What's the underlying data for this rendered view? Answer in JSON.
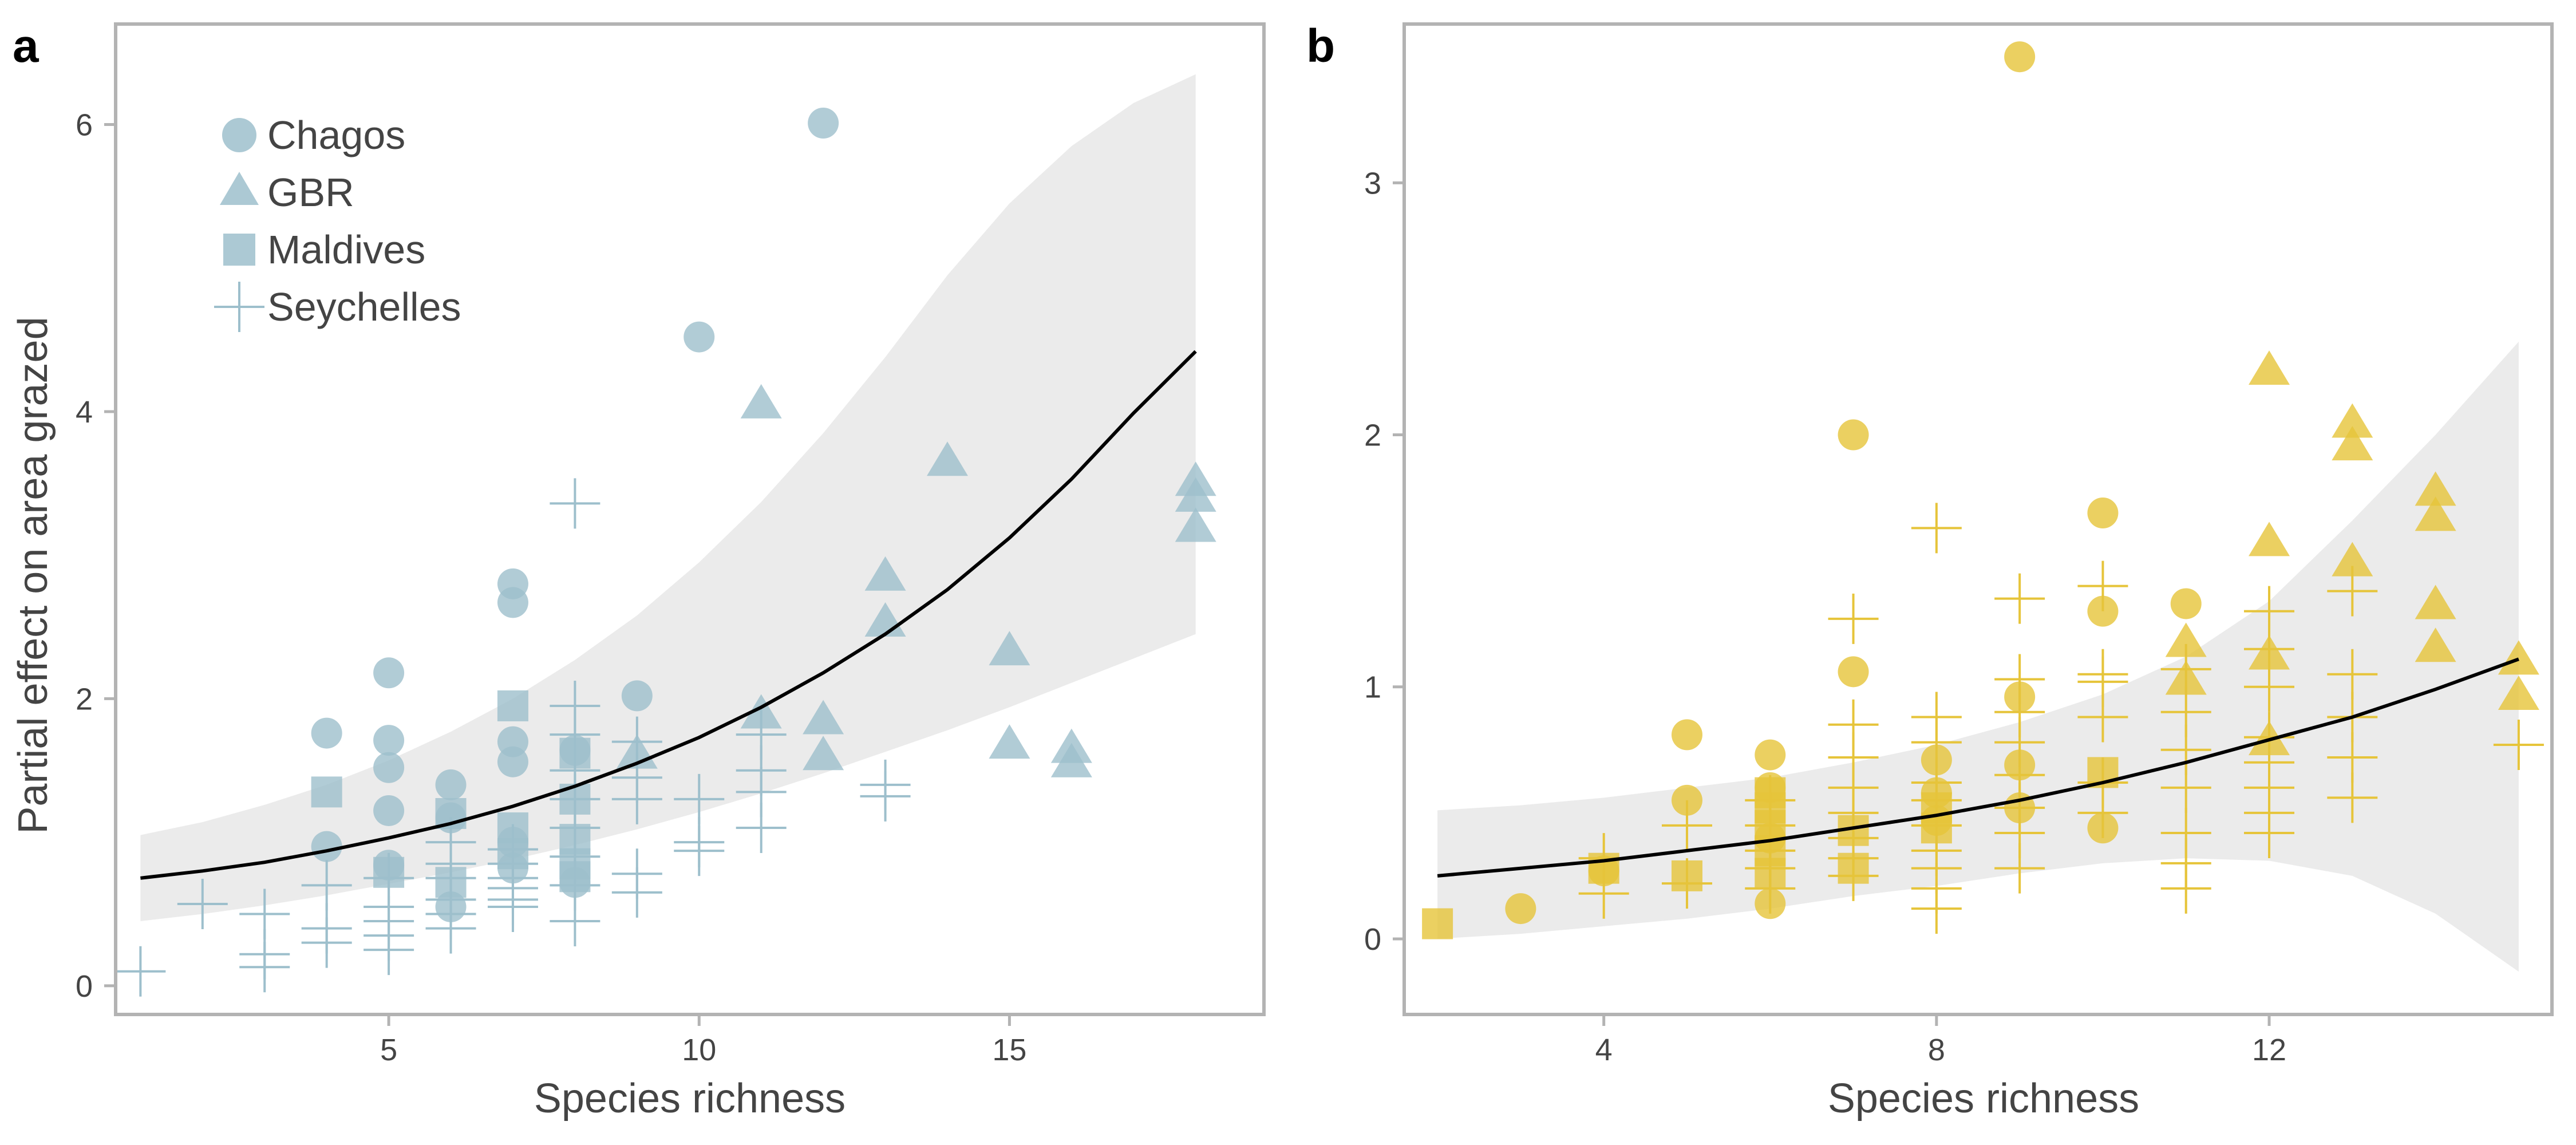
{
  "colors": {
    "panel_a": "#9dbfcc",
    "panel_b": "#e6c43a",
    "ribbon": "#ebebeb",
    "frame": "#b3b3b3",
    "fit_line": "#000000",
    "text": "#444444"
  },
  "legend": {
    "items": [
      {
        "label": "Chagos",
        "shape": "circle"
      },
      {
        "label": "GBR",
        "shape": "triangle"
      },
      {
        "label": "Maldives",
        "shape": "square"
      },
      {
        "label": "Seychelles",
        "shape": "plus"
      }
    ]
  },
  "chart_data": [
    {
      "panel": "a",
      "type": "scatter",
      "xlabel": "Species richness",
      "ylabel": "Partial effect on area grazed",
      "xlim": [
        0.6,
        19.1
      ],
      "ylim": [
        -0.2,
        6.7
      ],
      "xticks": [
        5,
        10,
        15
      ],
      "yticks": [
        0,
        2,
        4,
        6
      ],
      "grid": false,
      "legend_position": "top-left",
      "fit": {
        "x": [
          1,
          2,
          3,
          4,
          5,
          6,
          7,
          8,
          9,
          10,
          11,
          12,
          13,
          14,
          15,
          16,
          17,
          18
        ],
        "y": [
          0.75,
          0.8,
          0.86,
          0.94,
          1.03,
          1.13,
          1.25,
          1.39,
          1.55,
          1.73,
          1.94,
          2.18,
          2.45,
          2.76,
          3.12,
          3.53,
          3.99,
          4.42
        ],
        "lower": [
          0.45,
          0.5,
          0.56,
          0.63,
          0.71,
          0.79,
          0.88,
          0.98,
          1.09,
          1.21,
          1.34,
          1.48,
          1.63,
          1.78,
          1.94,
          2.11,
          2.28,
          2.45
        ],
        "upper": [
          1.05,
          1.14,
          1.26,
          1.4,
          1.57,
          1.77,
          2.0,
          2.27,
          2.58,
          2.95,
          3.37,
          3.85,
          4.38,
          4.95,
          5.45,
          5.85,
          6.15,
          6.35
        ]
      },
      "series": [
        {
          "name": "Chagos",
          "shape": "circle",
          "x": [
            4,
            4,
            5,
            5,
            5,
            5,
            5,
            6,
            6,
            6,
            7,
            7,
            7,
            7,
            7,
            7,
            8,
            8,
            9,
            10,
            12
          ],
          "y": [
            1.76,
            0.97,
            2.18,
            1.71,
            1.52,
            1.22,
            0.84,
            1.4,
            1.17,
            0.55,
            2.8,
            2.67,
            1.7,
            1.56,
            1.0,
            0.82,
            1.64,
            0.72,
            2.02,
            4.52,
            6.01
          ]
        },
        {
          "name": "GBR",
          "shape": "triangle",
          "x": [
            9,
            11,
            11,
            12,
            12,
            13,
            13,
            14,
            15,
            15,
            16,
            16,
            18,
            18,
            18
          ],
          "y": [
            1.62,
            4.06,
            1.9,
            1.86,
            1.61,
            2.86,
            2.54,
            3.66,
            2.34,
            1.69,
            1.66,
            1.56,
            3.52,
            3.41,
            3.2
          ]
        },
        {
          "name": "Maldives",
          "shape": "square",
          "x": [
            4,
            5,
            6,
            6,
            7,
            7,
            7,
            8,
            8,
            8,
            8,
            8
          ],
          "y": [
            1.35,
            0.79,
            1.2,
            0.72,
            1.95,
            1.1,
            0.92,
            1.62,
            1.3,
            1.02,
            0.85,
            0.76
          ]
        },
        {
          "name": "Seychelles",
          "shape": "plus",
          "x": [
            1,
            2,
            3,
            3,
            3,
            4,
            4,
            4,
            5,
            5,
            5,
            5,
            5,
            6,
            6,
            6,
            6,
            6,
            6,
            7,
            7,
            7,
            7,
            7,
            7,
            8,
            8,
            8,
            8,
            8,
            8,
            8,
            8,
            8,
            9,
            9,
            9,
            9,
            9,
            10,
            10,
            10,
            11,
            11,
            11,
            11,
            13,
            13
          ],
          "y": [
            0.1,
            0.57,
            0.5,
            0.22,
            0.13,
            0.7,
            0.4,
            0.3,
            0.75,
            0.55,
            0.45,
            0.35,
            0.25,
            1.0,
            0.85,
            0.75,
            0.6,
            0.5,
            0.4,
            0.95,
            0.85,
            0.75,
            0.68,
            0.6,
            0.55,
            3.36,
            1.95,
            1.75,
            1.5,
            1.3,
            1.1,
            0.9,
            0.7,
            0.45,
            1.7,
            1.45,
            1.3,
            0.78,
            0.65,
            1.3,
            1.0,
            0.94,
            1.75,
            1.5,
            1.35,
            1.1,
            1.4,
            1.32
          ]
        }
      ]
    },
    {
      "panel": "b",
      "type": "scatter",
      "xlabel": "Species richness",
      "ylabel": "",
      "xlim": [
        1.6,
        15.4
      ],
      "ylim": [
        -0.3,
        3.63
      ],
      "xticks": [
        4,
        8,
        12
      ],
      "yticks": [
        0,
        1,
        2,
        3
      ],
      "grid": false,
      "fit": {
        "x": [
          2,
          3,
          4,
          5,
          6,
          7,
          8,
          9,
          10,
          11,
          12,
          13,
          14,
          15
        ],
        "y": [
          0.25,
          0.28,
          0.31,
          0.35,
          0.39,
          0.44,
          0.49,
          0.55,
          0.62,
          0.7,
          0.79,
          0.88,
          0.99,
          1.11
        ],
        "lower": [
          0.0,
          0.02,
          0.05,
          0.08,
          0.12,
          0.17,
          0.21,
          0.26,
          0.3,
          0.32,
          0.31,
          0.25,
          0.1,
          -0.13
        ],
        "upper": [
          0.51,
          0.53,
          0.56,
          0.6,
          0.64,
          0.7,
          0.77,
          0.86,
          0.97,
          1.12,
          1.34,
          1.66,
          2.0,
          2.37
        ]
      },
      "series": [
        {
          "name": "Chagos",
          "shape": "circle",
          "x": [
            3,
            4,
            5,
            5,
            6,
            6,
            6,
            6,
            7,
            7,
            8,
            8,
            8,
            9,
            9,
            9,
            9,
            10,
            10,
            10,
            11
          ],
          "y": [
            0.12,
            0.27,
            0.81,
            0.55,
            0.73,
            0.6,
            0.4,
            0.14,
            2.0,
            1.06,
            0.71,
            0.58,
            0.47,
            3.5,
            0.96,
            0.69,
            0.52,
            1.69,
            1.3,
            0.44,
            1.33
          ]
        },
        {
          "name": "GBR",
          "shape": "triangle",
          "x": [
            11,
            11,
            12,
            12,
            12,
            12,
            13,
            13,
            13,
            14,
            14,
            14,
            14,
            15,
            15
          ],
          "y": [
            1.18,
            1.03,
            2.26,
            1.58,
            1.13,
            0.79,
            2.05,
            1.96,
            1.5,
            1.78,
            1.68,
            1.33,
            1.16,
            1.11,
            0.97
          ]
        },
        {
          "name": "Maldives",
          "shape": "square",
          "x": [
            2,
            4,
            5,
            6,
            6,
            6,
            6,
            6,
            7,
            7,
            8,
            8,
            10
          ],
          "y": [
            0.06,
            0.28,
            0.25,
            0.58,
            0.52,
            0.45,
            0.35,
            0.26,
            0.43,
            0.28,
            0.52,
            0.44,
            0.66
          ]
        },
        {
          "name": "Seychelles",
          "shape": "plus",
          "x": [
            4,
            4,
            5,
            5,
            6,
            6,
            6,
            6,
            6,
            7,
            7,
            7,
            7,
            7,
            7,
            7,
            7,
            8,
            8,
            8,
            8,
            8,
            8,
            8,
            8,
            8,
            8,
            9,
            9,
            9,
            9,
            9,
            9,
            9,
            9,
            10,
            10,
            10,
            10,
            10,
            10,
            11,
            11,
            11,
            11,
            11,
            11,
            11,
            12,
            12,
            12,
            12,
            12,
            12,
            12,
            12,
            13,
            13,
            13,
            13,
            13,
            15
          ],
          "y": [
            0.32,
            0.18,
            0.45,
            0.22,
            0.55,
            0.45,
            0.35,
            0.28,
            0.2,
            1.27,
            0.85,
            0.72,
            0.6,
            0.5,
            0.4,
            0.32,
            0.25,
            1.63,
            0.88,
            0.78,
            0.62,
            0.55,
            0.45,
            0.35,
            0.28,
            0.2,
            0.12,
            1.35,
            1.03,
            0.9,
            0.78,
            0.65,
            0.52,
            0.42,
            0.28,
            1.4,
            1.05,
            1.02,
            0.88,
            0.62,
            0.5,
            1.07,
            0.9,
            0.75,
            0.6,
            0.42,
            0.3,
            0.2,
            1.3,
            1.15,
            1.0,
            0.8,
            0.7,
            0.6,
            0.5,
            0.42,
            1.38,
            1.05,
            0.88,
            0.72,
            0.56,
            0.77
          ]
        }
      ]
    }
  ]
}
